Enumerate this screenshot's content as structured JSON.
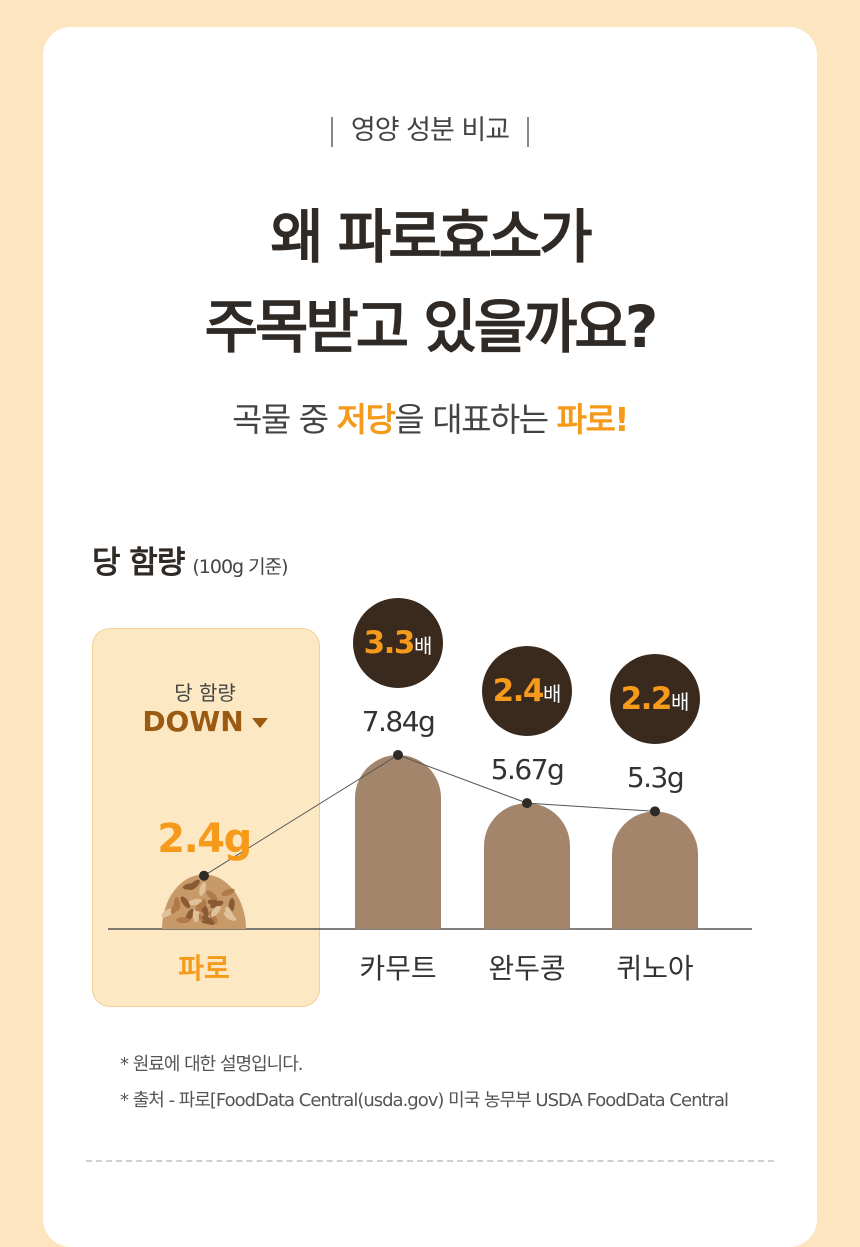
{
  "section_label": "영양 성분 비교",
  "headline": [
    "왜 파로효소가",
    "주목받고 있을까요?"
  ],
  "subhead": {
    "p1": "곡물 중 ",
    "h1": "저당",
    "p2": "을 대표하는 ",
    "h2": "파로!"
  },
  "chart_data": {
    "type": "bar",
    "title": "당 함량",
    "unit_note": "(100g 기준)",
    "categories": [
      "파로",
      "카무트",
      "완두콩",
      "퀴노아"
    ],
    "values": [
      2.4,
      7.84,
      5.67,
      5.3
    ],
    "value_labels": [
      "2.4g",
      "7.84g",
      "5.67g",
      "5.3g"
    ],
    "multiplier_labels": [
      "3.3",
      "2.4",
      "2.2"
    ],
    "multiplier_suffix": "배",
    "highlight": {
      "sub": "당 함량",
      "main": "DOWN"
    },
    "colors": {
      "bar": "#a2856b",
      "accent": "#f59a1b",
      "circle": "#3a2a1d",
      "highlight_bg": "#fde8c4"
    }
  },
  "notes": [
    "* 원료에 대한 설명입니다.",
    "* 출처 - 파로[FoodData Central(usda.gov) 미국 농무부 USDA FoodData Central"
  ]
}
